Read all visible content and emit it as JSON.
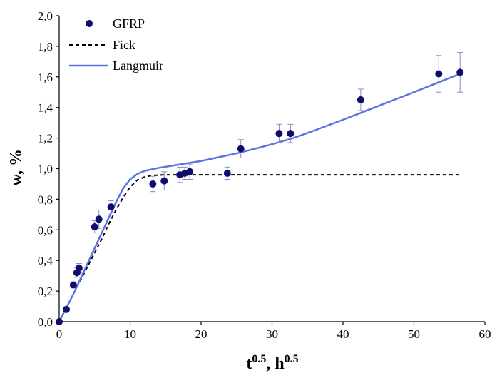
{
  "chart_data": {
    "type": "scatter",
    "xlabel": {
      "base1": "t",
      "sup1": "0.5",
      "sep": ", ",
      "base2": "h",
      "sup2": "0.5"
    },
    "ylabel": "w, %",
    "xlim": [
      0,
      60
    ],
    "ylim": [
      0,
      2.0
    ],
    "x_ticks": [
      "0",
      "10",
      "20",
      "30",
      "40",
      "50",
      "60"
    ],
    "y_ticks": [
      "0,0",
      "0,2",
      "0,4",
      "0,6",
      "0,8",
      "1,0",
      "1,2",
      "1,4",
      "1,6",
      "1,8",
      "2,0"
    ],
    "grid": false,
    "legend": {
      "placement": "top-left",
      "entries": [
        "GFRP",
        "Fick",
        "Langmuir"
      ]
    },
    "series": [
      {
        "name": "GFRP",
        "kind": "points",
        "color": "#0d0d6b",
        "error_color": "#8a8ac8",
        "points": [
          {
            "x": 0,
            "y": 0.0,
            "err": 0
          },
          {
            "x": 1.0,
            "y": 0.08,
            "err": 0.0
          },
          {
            "x": 2.0,
            "y": 0.24,
            "err": 0.02
          },
          {
            "x": 2.5,
            "y": 0.32,
            "err": 0.03
          },
          {
            "x": 2.8,
            "y": 0.35,
            "err": 0.03
          },
          {
            "x": 5.0,
            "y": 0.62,
            "err": 0.04
          },
          {
            "x": 5.6,
            "y": 0.67,
            "err": 0.06
          },
          {
            "x": 7.3,
            "y": 0.75,
            "err": 0.04
          },
          {
            "x": 13.2,
            "y": 0.9,
            "err": 0.05
          },
          {
            "x": 14.8,
            "y": 0.92,
            "err": 0.06
          },
          {
            "x": 17.0,
            "y": 0.96,
            "err": 0.05
          },
          {
            "x": 17.7,
            "y": 0.97,
            "err": 0.04
          },
          {
            "x": 18.4,
            "y": 0.98,
            "err": 0.05
          },
          {
            "x": 23.7,
            "y": 0.97,
            "err": 0.04
          },
          {
            "x": 25.6,
            "y": 1.13,
            "err": 0.06
          },
          {
            "x": 31.0,
            "y": 1.23,
            "err": 0.06
          },
          {
            "x": 32.6,
            "y": 1.23,
            "err": 0.06
          },
          {
            "x": 42.5,
            "y": 1.45,
            "err": 0.07
          },
          {
            "x": 53.5,
            "y": 1.62,
            "err": 0.12
          },
          {
            "x": 56.5,
            "y": 1.63,
            "err": 0.13
          }
        ]
      },
      {
        "name": "Fick",
        "kind": "line",
        "color": "#000000",
        "dash": "dashed",
        "x": [
          0,
          1,
          2,
          3,
          4,
          5,
          6,
          7,
          8,
          9,
          10,
          11,
          12,
          13,
          14,
          15,
          16,
          18,
          20,
          25,
          30,
          40,
          50,
          56.5
        ],
        "y": [
          0,
          0.09,
          0.18,
          0.27,
          0.36,
          0.45,
          0.54,
          0.64,
          0.73,
          0.81,
          0.88,
          0.925,
          0.945,
          0.955,
          0.958,
          0.96,
          0.96,
          0.96,
          0.96,
          0.96,
          0.96,
          0.96,
          0.96,
          0.96
        ]
      },
      {
        "name": "Langmuir",
        "kind": "line",
        "color": "#5b73e0",
        "dash": "solid",
        "x": [
          0,
          1,
          2,
          3,
          4,
          5,
          6,
          7,
          8,
          9,
          10,
          11,
          12,
          14,
          16,
          18,
          20,
          22,
          25,
          28,
          30,
          33,
          36,
          40,
          45,
          50,
          53.5,
          56.5
        ],
        "y": [
          0,
          0.09,
          0.18,
          0.28,
          0.38,
          0.48,
          0.58,
          0.68,
          0.78,
          0.87,
          0.93,
          0.965,
          0.985,
          1.005,
          1.02,
          1.035,
          1.05,
          1.07,
          1.1,
          1.135,
          1.16,
          1.2,
          1.25,
          1.32,
          1.41,
          1.5,
          1.565,
          1.62
        ]
      }
    ]
  }
}
